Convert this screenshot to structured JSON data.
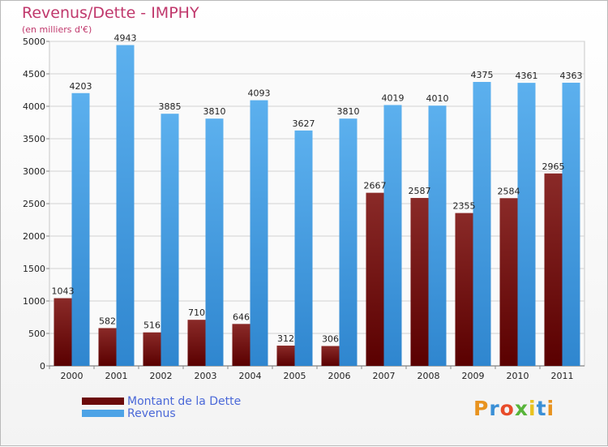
{
  "header": {
    "title": "Revenus/Dette - IMPHY",
    "subtitle": "(en milliers d'€)"
  },
  "legend": {
    "items": [
      {
        "label": "Montant de la Dette",
        "color": "#6b0a0a"
      },
      {
        "label": "Revenus",
        "color": "#4da3e6"
      }
    ]
  },
  "logo": {
    "text": "Proxiti"
  },
  "chart_data": {
    "type": "bar",
    "title": "Revenus/Dette - IMPHY",
    "ylabel": "(en milliers d'€)",
    "xlabel": "",
    "ylim": [
      0,
      5000
    ],
    "yticks": [
      0,
      500,
      1000,
      1500,
      2000,
      2500,
      3000,
      3500,
      4000,
      4500,
      5000
    ],
    "grid": true,
    "legend_position": "bottom-left",
    "categories": [
      "2000",
      "2001",
      "2002",
      "2003",
      "2004",
      "2005",
      "2006",
      "2007",
      "2008",
      "2009",
      "2010",
      "2011"
    ],
    "series": [
      {
        "name": "Montant de la Dette",
        "color": "#6b0a0a",
        "values": [
          1043,
          582,
          516,
          710,
          646,
          312,
          306,
          2667,
          2587,
          2355,
          2584,
          2965
        ]
      },
      {
        "name": "Revenus",
        "color": "#4da3e6",
        "values": [
          4203,
          4943,
          3885,
          3810,
          4093,
          3627,
          3810,
          4019,
          4010,
          4375,
          4361,
          4363
        ]
      }
    ]
  }
}
